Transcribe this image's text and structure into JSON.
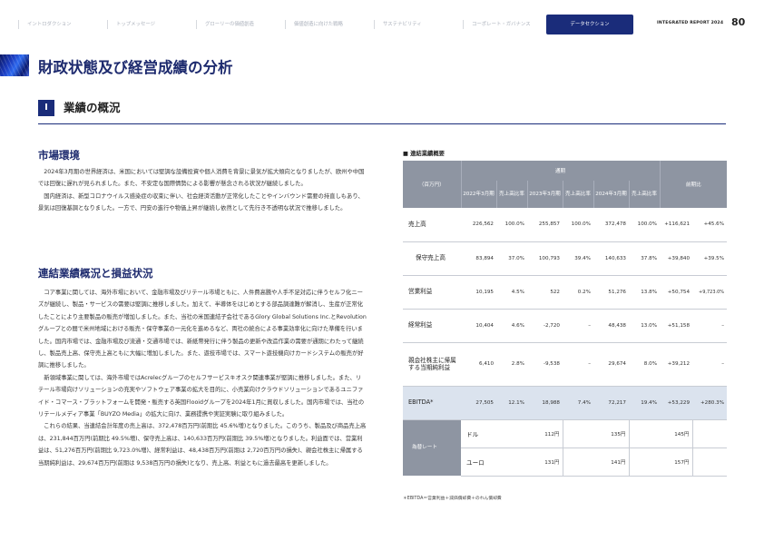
{
  "nav": {
    "tabs": [
      "イントロダクション",
      "トップメッセージ",
      "グローリーの価値創造",
      "価値創造に向けた戦略",
      "サステナビリティ",
      "コーポレート・ガバナンス",
      "データセクション"
    ],
    "report_label": "INTEGRATED REPORT 2024",
    "page_number": "80"
  },
  "page_title": "財政状態及び経営成績の分析",
  "section": {
    "number": "I",
    "title": "業績の概況"
  },
  "market": {
    "heading": "市場環境",
    "paragraphs": [
      "2024年3月期の世界経済は、米国においては堅調な設備投資や個人消費を背景に景気が拡大傾向となりましたが、欧州や中国では回復に遅れが見られました。また、不安定な国際情勢による影響が懸念される状況が継続しました。",
      "国内経済は、新型コロナウイルス感染症の収束に伴い、社会経済活動が正常化したことやインバウンド需要の持直しもあり、景気は回復基調となりました。一方で、円安の進行や物価上昇が継続し依然として先行き不透明な状況で推移しました。"
    ]
  },
  "consolidated": {
    "heading": "連結業績概況と損益状況",
    "paragraphs": [
      "コア事業に関しては、海外市場において、金融市場及びリテール市場ともに、人件費高騰や人手不足対応に伴うセルフ化ニーズが継続し、製品・サービスの需要は堅調に推移しました。加えて、半導体をはじめとする部品調達難が解消し、生産が正常化したことにより主要製品の販売が増加しました。また、当社の米国連結子会社であるGlory Global Solutions Inc.とRevolutionグループとの間で米州地域における販売・保守事業の一元化を進めるなど、両社の統合による事業効率化に向けた準備を行いました。国内市場では、金融市場及び流通・交通市場では、新紙幣発行に伴う製品の更新や改造作業の需要が通期にわたって継続し、製品売上高、保守売上高ともに大幅に増加しました。また、遊技市場では、スマート遊技機向けカードシステムの販売が好調に推移しました。",
      "新領域事業に関しては、海外市場ではAcrelecグループのセルフサービスキオスク関連事業が堅調に推移しました。また、リテール市場向けソリューションの充実やソフトウェア事業の拡大を目的に、小売業向けクラウドソリューションであるユニファイド・コマース・プラットフォームを開発・販売する英国Flooidグループを2024年1月に買収しました。国内市場では、当社のリテールメディア事業「BUYZO Media」の拡大に向け、業務提携や実証実験に取り組みました。",
      "これらの結果、当連結会計年度の売上高は、372,478百万円(前期比 45.6%増)となりました。このうち、製品及び商品売上高は、231,844百万円(前期比 49.5%増)、保守売上高は、140,633百万円(前期比 39.5%増)となりました。利益面では、営業利益は、51,276百万円(前期比 9,723.0%増)、経常利益は、48,438百万円(前期は 2,720百万円の損失)、親会社株主に帰属する当期純利益は、29,674百万円(前期は 9,538百万円の損失)となり、売上高、利益ともに過去最高を更新しました。"
    ]
  },
  "table": {
    "heading": "■ 連結業績概要",
    "unit_label": "（百万円）",
    "period_label": "通期",
    "yoy_label": "前期比",
    "columns": [
      {
        "year": "2022年3月期",
        "ratio": "売上高比率"
      },
      {
        "year": "2023年3月期",
        "ratio": "売上高比率"
      },
      {
        "year": "2024年3月期",
        "ratio": "売上高比率"
      }
    ],
    "rows": [
      {
        "label": "売上高",
        "v2022": "226,562",
        "r2022": "100.0%",
        "v2023": "255,857",
        "r2023": "100.0%",
        "v2024": "372,478",
        "r2024": "100.0%",
        "yoy_abs": "+116,621",
        "yoy_pct": "+45.6%"
      },
      {
        "label": "保守売上高",
        "v2022": "83,894",
        "r2022": "37.0%",
        "v2023": "100,793",
        "r2023": "39.4%",
        "v2024": "140,633",
        "r2024": "37.8%",
        "yoy_abs": "+39,840",
        "yoy_pct": "+39.5%"
      },
      {
        "label": "営業利益",
        "v2022": "10,195",
        "r2022": "4.5%",
        "v2023": "522",
        "r2023": "0.2%",
        "v2024": "51,276",
        "r2024": "13.8%",
        "yoy_abs": "+50,754",
        "yoy_pct": "+9,723.0%"
      },
      {
        "label": "経常利益",
        "v2022": "10,404",
        "r2022": "4.6%",
        "v2023": "-2,720",
        "r2023": "–",
        "v2024": "48,438",
        "r2024": "13.0%",
        "yoy_abs": "+51,158",
        "yoy_pct": "–"
      },
      {
        "label": "親会社株主に帰属する当期純利益",
        "v2022": "6,410",
        "r2022": "2.8%",
        "v2023": "-9,538",
        "r2023": "–",
        "v2024": "29,674",
        "r2024": "8.0%",
        "yoy_abs": "+39,212",
        "yoy_pct": "–"
      },
      {
        "label": "EBITDA*",
        "v2022": "27,505",
        "r2022": "12.1%",
        "v2023": "18,988",
        "r2023": "7.4%",
        "v2024": "72,217",
        "r2024": "19.4%",
        "yoy_abs": "+53,229",
        "yoy_pct": "+280.3%"
      }
    ],
    "exchange": {
      "label": "為替レート",
      "rows": [
        {
          "currency": "ドル",
          "v2022": "112円",
          "v2023": "135円",
          "v2024": "145円"
        },
        {
          "currency": "ユーロ",
          "v2022": "131円",
          "v2023": "141円",
          "v2024": "157円"
        }
      ]
    },
    "note": "＊EBITDA＝営業利益＋減価償却費＋のれん償却費"
  }
}
